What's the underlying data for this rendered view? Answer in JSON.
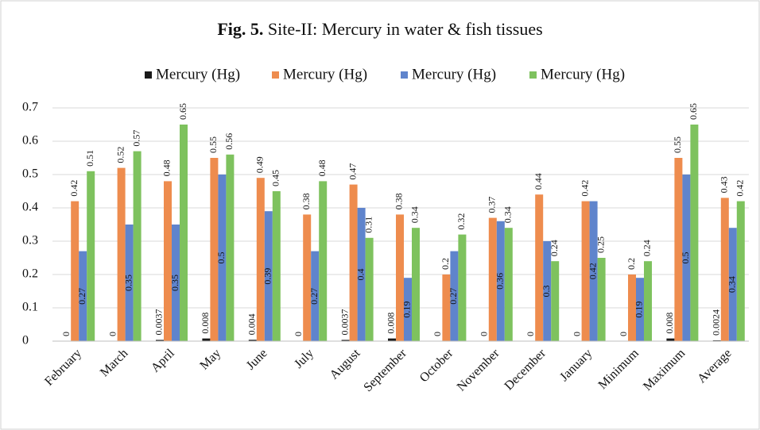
{
  "chart_data": {
    "type": "bar",
    "title_prefix": "Fig. 5.",
    "title": "Site-II: Mercury in water & fish tissues",
    "categories": [
      "February",
      "March",
      "April",
      "May",
      "June",
      "July",
      "August",
      "September",
      "October",
      "November",
      "December",
      "January",
      "Minimum",
      "Maximum",
      "Average"
    ],
    "series": [
      {
        "name": "Mercury (Hg)",
        "color": "#1a1a1a",
        "values": [
          0,
          0,
          0.0037,
          0.008,
          0.004,
          0,
          0.0037,
          0.008,
          0,
          0,
          0,
          0,
          0,
          0.008,
          0.0024
        ]
      },
      {
        "name": "Mercury (Hg)",
        "color": "#ee8c4e",
        "values": [
          0.42,
          0.52,
          0.48,
          0.55,
          0.49,
          0.38,
          0.47,
          0.38,
          0.2,
          0.37,
          0.44,
          0.42,
          0.2,
          0.55,
          0.43
        ]
      },
      {
        "name": "Mercury (Hg)",
        "color": "#5f84cc",
        "values": [
          0.27,
          0.35,
          0.35,
          0.5,
          0.39,
          0.27,
          0.4,
          0.19,
          0.27,
          0.36,
          0.3,
          0.42,
          0.19,
          0.5,
          0.34
        ]
      },
      {
        "name": "Mercury (Hg)",
        "color": "#7ec25e",
        "values": [
          0.51,
          0.57,
          0.65,
          0.56,
          0.45,
          0.48,
          0.31,
          0.34,
          0.32,
          0.34,
          0.24,
          0.25,
          0.24,
          0.65,
          0.42
        ]
      }
    ],
    "ylim": [
      0,
      0.7
    ],
    "yticks": [
      0,
      0.1,
      0.2,
      0.3,
      0.4,
      0.5,
      0.6,
      0.7
    ],
    "grid": true,
    "legend": "top"
  }
}
